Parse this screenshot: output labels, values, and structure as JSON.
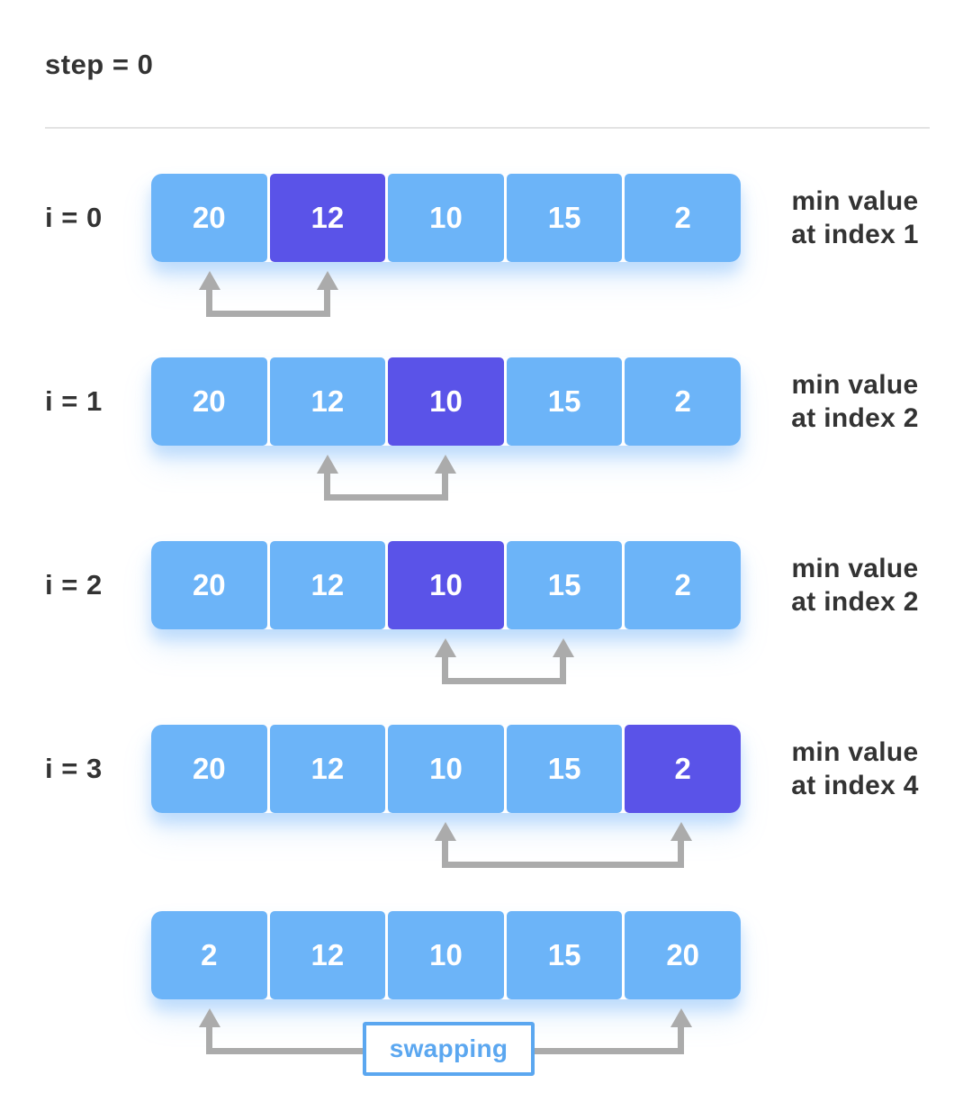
{
  "title": "step = 0",
  "colors": {
    "cell_blue": "#6cb4f8",
    "cell_highlight": "#5a53e8",
    "arrow_gray": "#ababab",
    "swap_blue": "#5ba7f0",
    "text_dark": "#333333",
    "divider": "#e3e3e3"
  },
  "rows": [
    {
      "iterator_label": "i = 0",
      "cells": [
        "20",
        "12",
        "10",
        "15",
        "2"
      ],
      "highlight_index": 1,
      "min_label_line1": "min value",
      "min_label_line2": "at index 1",
      "arrow": {
        "from_index": 0,
        "to_index": 1
      }
    },
    {
      "iterator_label": "i = 1",
      "cells": [
        "20",
        "12",
        "10",
        "15",
        "2"
      ],
      "highlight_index": 2,
      "min_label_line1": "min value",
      "min_label_line2": "at index 2",
      "arrow": {
        "from_index": 1,
        "to_index": 2
      }
    },
    {
      "iterator_label": "i = 2",
      "cells": [
        "20",
        "12",
        "10",
        "15",
        "2"
      ],
      "highlight_index": 2,
      "min_label_line1": "min value",
      "min_label_line2": "at index 2",
      "arrow": {
        "from_index": 2,
        "to_index": 3
      }
    },
    {
      "iterator_label": "i = 3",
      "cells": [
        "20",
        "12",
        "10",
        "15",
        "2"
      ],
      "highlight_index": 4,
      "min_label_line1": "min value",
      "min_label_line2": "at index 4",
      "arrow": {
        "from_index": 2,
        "to_index": 4
      }
    },
    {
      "cells": [
        "2",
        "12",
        "10",
        "15",
        "20"
      ],
      "highlight_index": null,
      "arrow": {
        "from_index": 0,
        "to_index": 4
      },
      "swap_label": "swapping"
    }
  ]
}
